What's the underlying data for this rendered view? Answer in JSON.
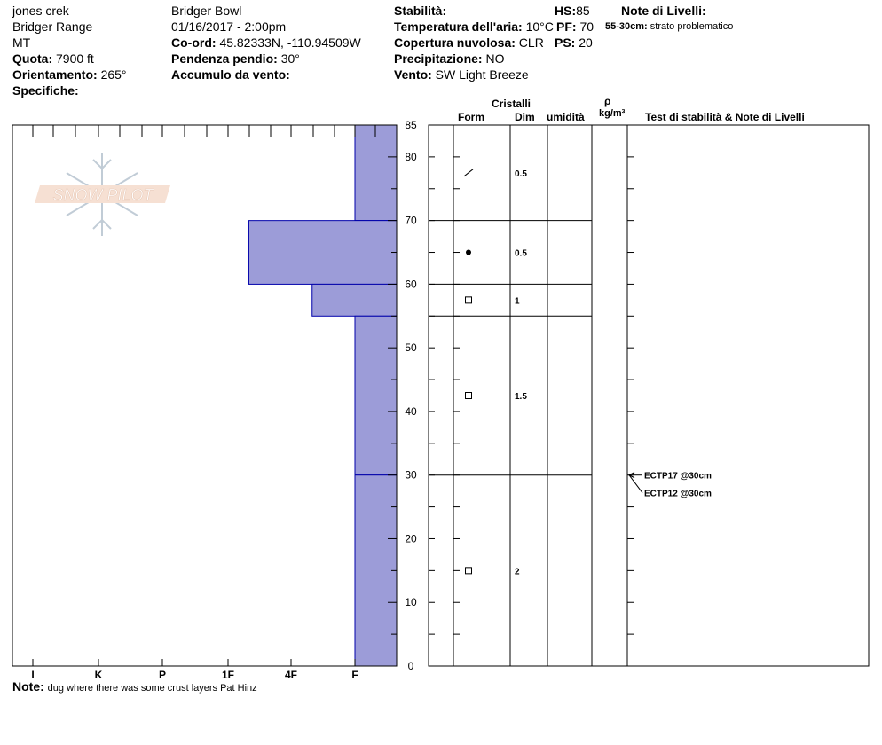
{
  "header": {
    "location": "jones crek",
    "range": "Bridger Range",
    "state": "MT",
    "elevation_label": "Quota:",
    "elevation_value": "7900 ft",
    "aspect_label": "Orientamento:",
    "aspect_value": "265°",
    "specifics_label": "Specifiche:",
    "area": "Bridger Bowl",
    "datetime": "01/16/2017 - 2:00pm",
    "coord_label": "Co-ord:",
    "coord_value": "45.82333N, -110.94509W",
    "slope_label": "Pendenza pendio:",
    "slope_value": "30°",
    "wind_loading_label": "Accumulo da vento:",
    "stability_label": "Stabilità:",
    "air_temp_label": "Temperatura dell'aria:",
    "air_temp_value": "10°C",
    "cloud_label": "Copertura nuvolosa:",
    "cloud_value": "CLR",
    "precip_label": "Precipitazione:",
    "precip_value": "NO",
    "wind_label": "Vento:",
    "wind_value": "SW Light Breeze",
    "hs_label": "HS:",
    "hs_value": "85",
    "pf_label": "PF:",
    "pf_value": "70",
    "ps_label": "PS:",
    "ps_value": "20",
    "layer_notes_title": "Note di Livelli:",
    "layer_note_range": "55-30cm:",
    "layer_note_text": "strato problematico"
  },
  "logo_text": "SNOW PILOT",
  "columns": {
    "crystals": "Cristalli",
    "form": "Form",
    "dim": "Dim",
    "humidity": "umidità",
    "rho": "ρ",
    "density_unit": "kg/m³",
    "tests": "Test di stabilità & Note di Livelli"
  },
  "note_label": "Note:",
  "note_text": "dug where there was some crust layers Pat Hinz",
  "colors": {
    "hardness_fill": "#9c9cd8",
    "hardness_stroke": "#0000aa"
  },
  "chart_data": {
    "type": "bar",
    "y_axis": {
      "range": [
        0,
        85
      ],
      "ticks": [
        0,
        10,
        20,
        30,
        40,
        50,
        60,
        70,
        80,
        85
      ],
      "unit": "cm"
    },
    "hardness_ticks": [
      "I",
      "K",
      "P",
      "1F",
      "4F",
      "F"
    ],
    "layers": [
      {
        "top": 85,
        "bottom": 70,
        "hardness": "F",
        "form": "slash",
        "dim": "0.5"
      },
      {
        "top": 70,
        "bottom": 60,
        "hardness": "1F-",
        "form": "dot",
        "dim": "0.5"
      },
      {
        "top": 60,
        "bottom": 55,
        "hardness": "4F-",
        "form": "square",
        "dim": "1"
      },
      {
        "top": 55,
        "bottom": 30,
        "hardness": "F",
        "form": "square",
        "dim": "1.5"
      },
      {
        "top": 30,
        "bottom": 0,
        "hardness": "F",
        "form": "square",
        "dim": "2"
      }
    ],
    "tests": [
      {
        "label": "ECTP17 @30cm",
        "depth": 30
      },
      {
        "label": "ECTP12 @30cm",
        "depth": 30
      }
    ]
  }
}
